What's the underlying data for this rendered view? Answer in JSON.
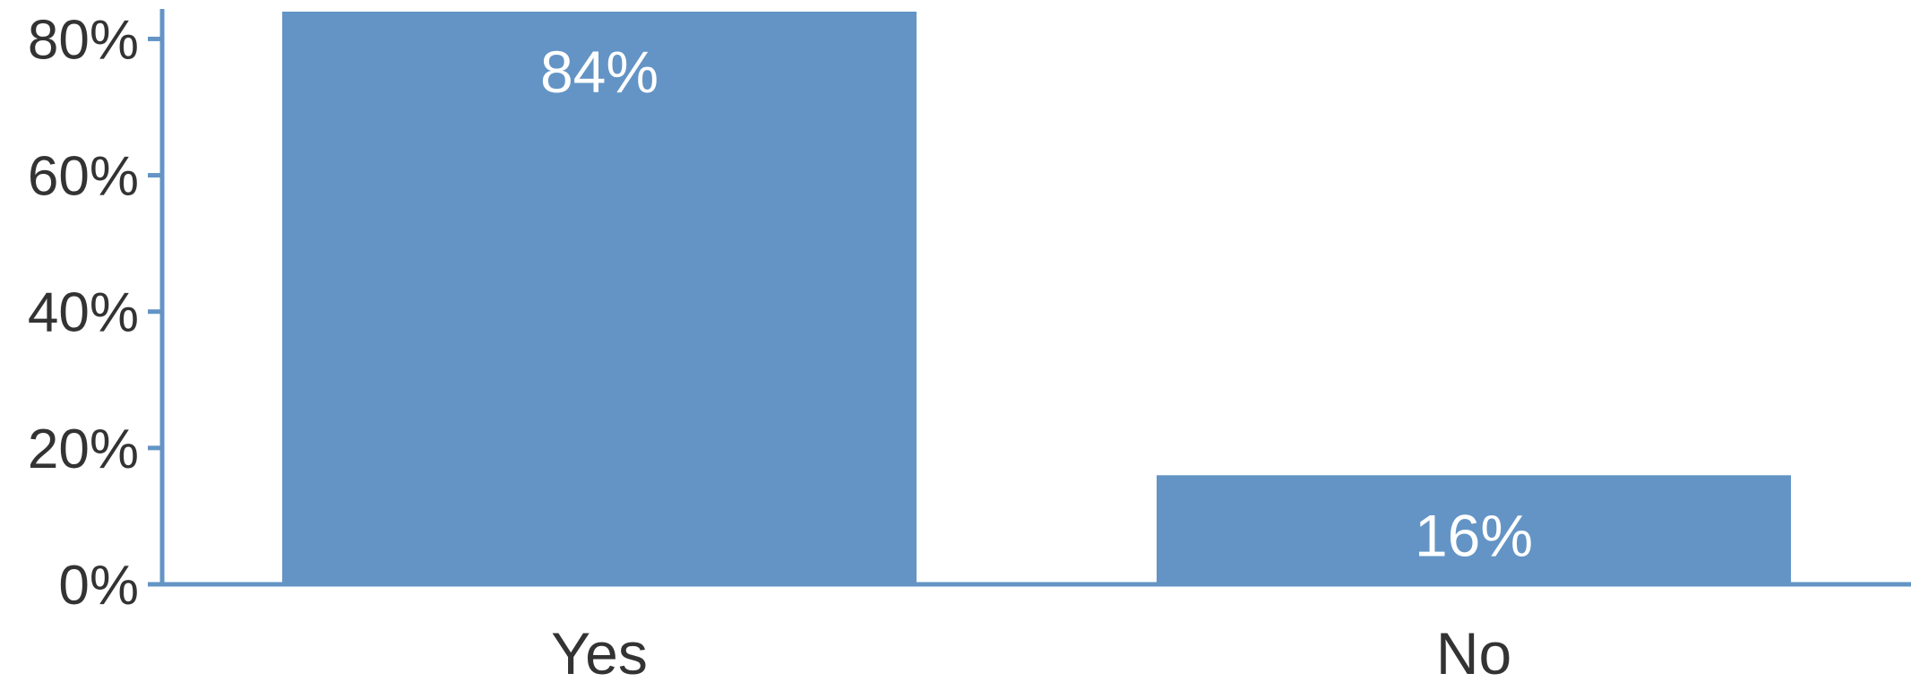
{
  "chart_data": {
    "type": "bar",
    "categories": [
      "Yes",
      "No"
    ],
    "values": [
      84,
      16
    ],
    "value_labels": [
      "84%",
      "16%"
    ],
    "ylim": [
      0,
      84
    ],
    "yticks": [
      0,
      20,
      40,
      60,
      80
    ],
    "ytick_labels": [
      "0%",
      "20%",
      "40%",
      "60%",
      "80%"
    ],
    "title": "",
    "xlabel": "",
    "ylabel": "",
    "grid": false,
    "legend": "none",
    "bar_color": "#6394c5",
    "axis_color": "#6394c5"
  }
}
